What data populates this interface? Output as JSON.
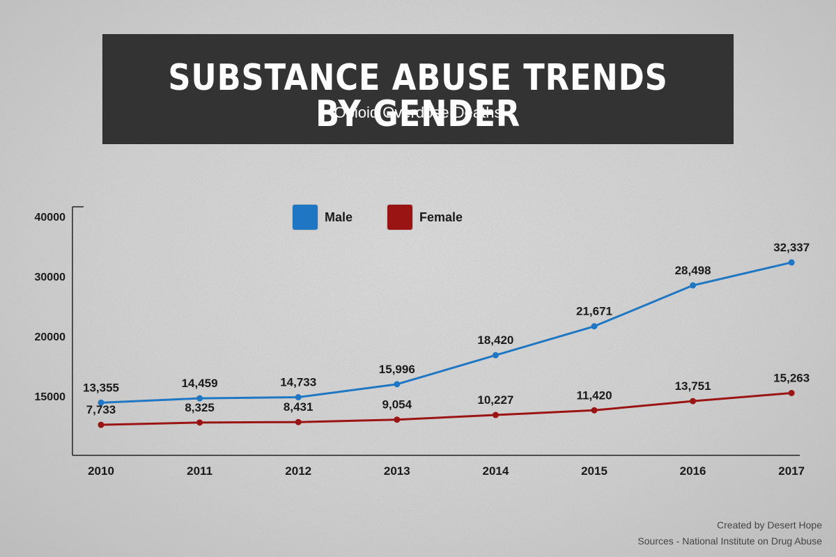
{
  "header": {
    "title": "SUBSTANCE ABUSE TRENDS BY GENDER",
    "subtitle": "Opioid Overdose Deaths"
  },
  "legend": {
    "male_label": "Male",
    "female_label": "Female"
  },
  "footer": {
    "credit": "Created by Desert Hope",
    "sources": "Sources - National Institute on Drug Abuse"
  },
  "colors": {
    "male": "#1f77c4",
    "female": "#9b1414",
    "axis": "#222222"
  },
  "chart_data": {
    "type": "line",
    "x": [
      "2010",
      "2011",
      "2012",
      "2013",
      "2014",
      "2015",
      "2016",
      "2017"
    ],
    "y_ticks": [
      "40000",
      "30000",
      "20000",
      "15000"
    ],
    "series": [
      {
        "name": "Male",
        "values": [
          13355,
          14459,
          14733,
          15996,
          18420,
          21671,
          28498,
          32337
        ],
        "labels": [
          "13,355",
          "14,459",
          "14,733",
          "15,996",
          "18,420",
          "21,671",
          "28,498",
          "32,337"
        ]
      },
      {
        "name": "Female",
        "values": [
          7733,
          8325,
          8431,
          9054,
          10227,
          11420,
          13751,
          15263
        ],
        "labels": [
          "7,733",
          "8,325",
          "8,431",
          "9,054",
          "10,227",
          "11,420",
          "13,751",
          "15,263"
        ]
      }
    ],
    "grid": false,
    "legend_position": "top-center"
  }
}
